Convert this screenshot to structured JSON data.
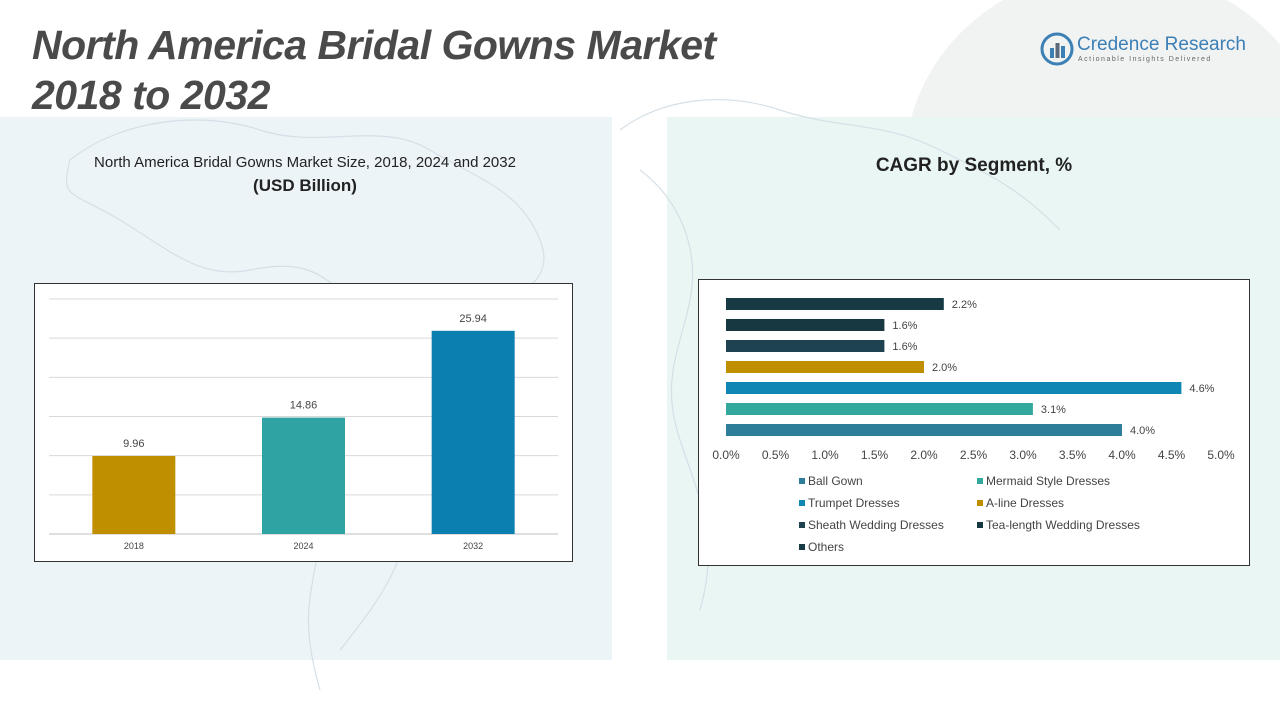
{
  "header": {
    "title_line1": "North America Bridal Gowns Market",
    "title_line2": "2018 to 2032"
  },
  "logo": {
    "name": "Credence Research",
    "tagline": "Actionable Insights Delivered",
    "icon": "credence-logo-icon",
    "color": "#3b7fb5"
  },
  "left_panel": {
    "title": "North America Bridal Gowns Market Size, 2018, 2024 and 2032",
    "subtitle": "(USD Billion)"
  },
  "right_panel": {
    "title": "CAGR by Segment, %"
  },
  "chart_data": [
    {
      "type": "bar",
      "title": "North America Bridal Gowns Market Size, 2018, 2024 and 2032",
      "ylabel": "(USD Billion)",
      "categories": [
        "2018",
        "2024",
        "2032"
      ],
      "values": [
        9.96,
        14.86,
        25.94
      ],
      "value_labels": [
        "9.96",
        "14.86",
        "25.94"
      ],
      "colors": [
        "#bf8f00",
        "#2fa3a3",
        "#0a7fb0"
      ],
      "ylim": [
        0,
        30
      ],
      "grid": true,
      "legend": "none"
    },
    {
      "type": "bar",
      "orientation": "horizontal",
      "title": "CAGR by Segment, %",
      "categories": [
        "Ball Gown",
        "Mermaid Style Dresses",
        "Trumpet Dresses",
        "A-line Dresses",
        "Sheath Wedding Dresses",
        "Tea-length Wedding Dresses",
        "Others"
      ],
      "values": [
        4.0,
        3.1,
        4.6,
        2.0,
        1.6,
        1.6,
        2.2
      ],
      "value_labels": [
        "4.0%",
        "3.1%",
        "4.6%",
        "2.0%",
        "1.6%",
        "1.6%",
        "2.2%"
      ],
      "colors": [
        "#2e7d99",
        "#33a89d",
        "#0f86b4",
        "#bf8f00",
        "#1f4250",
        "#173840",
        "#173a44"
      ],
      "xlim": [
        0,
        5
      ],
      "xticks": [
        "0.0%",
        "0.5%",
        "1.0%",
        "1.5%",
        "2.0%",
        "2.5%",
        "3.0%",
        "3.5%",
        "4.0%",
        "4.5%",
        "5.0%"
      ],
      "grid": false,
      "legend": "bottom"
    }
  ]
}
